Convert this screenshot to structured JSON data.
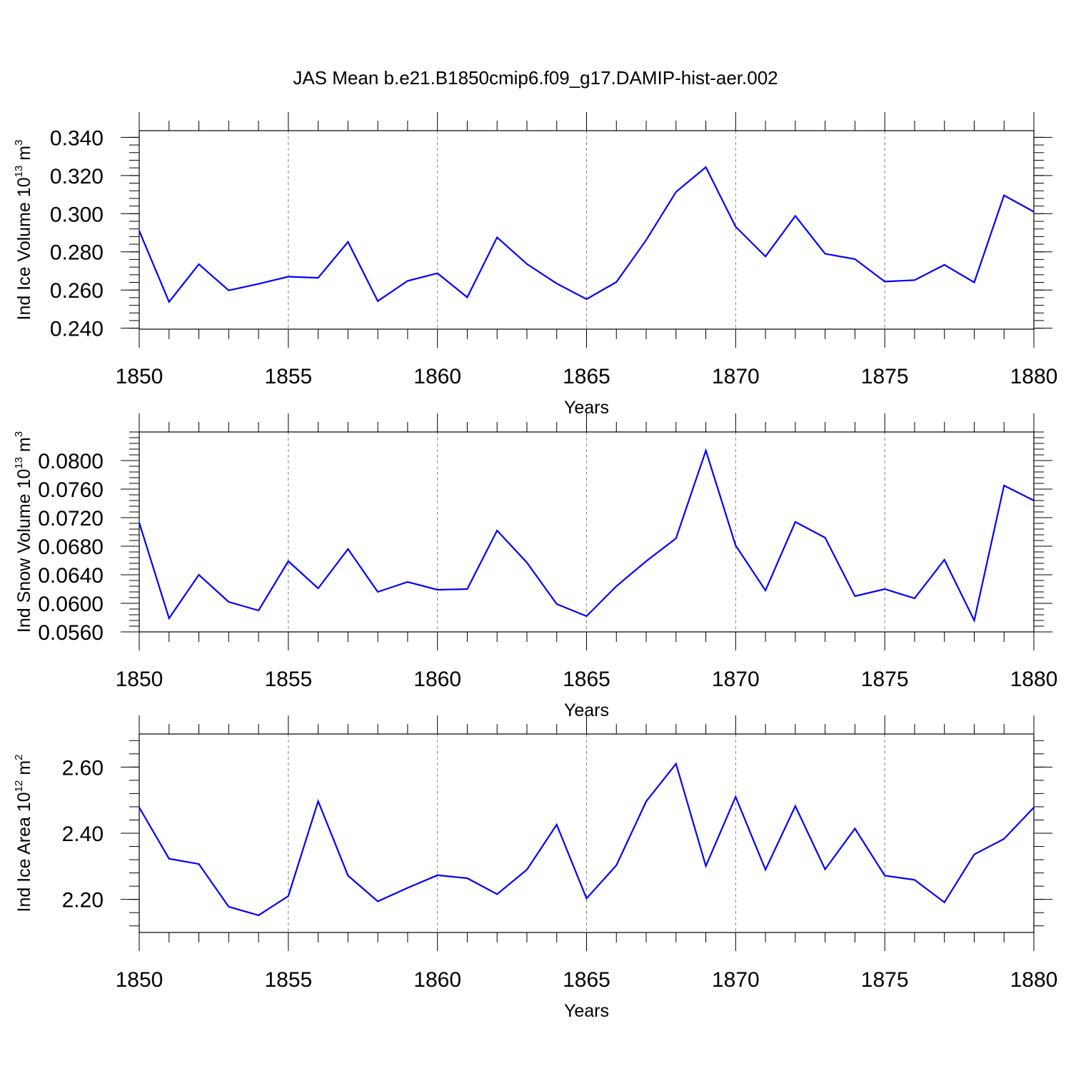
{
  "title": "JAS Mean b.e21.B1850cmip6.f09_g17.DAMIP-hist-aer.002",
  "colors": {
    "series": "#0000ff",
    "axes": "#000000",
    "grid": "#808080",
    "background": "#ffffff"
  },
  "chart_data": [
    {
      "type": "line",
      "title": "",
      "xlabel": "Years",
      "ylabel": {
        "text": "Ind Ice Volume 10",
        "exp": "13",
        "unit": " m",
        "unit_exp": "3"
      },
      "xlim": [
        1850,
        1880
      ],
      "ylim": [
        0.2395,
        0.3435
      ],
      "xticks": [
        1850,
        1855,
        1860,
        1865,
        1870,
        1875,
        1880
      ],
      "xtick_labels": [
        "1850",
        "1855",
        "1860",
        "1865",
        "1870",
        "1875",
        "1880"
      ],
      "yticks": [
        0.24,
        0.26,
        0.28,
        0.3,
        0.32,
        0.34
      ],
      "ytick_labels": [
        "0.240",
        "0.260",
        "0.280",
        "0.300",
        "0.320",
        "0.340"
      ],
      "grid": "vertical dashed at major x ticks",
      "x": [
        1850,
        1851,
        1852,
        1853,
        1854,
        1855,
        1856,
        1857,
        1858,
        1859,
        1860,
        1861,
        1862,
        1863,
        1864,
        1865,
        1866,
        1867,
        1868,
        1869,
        1870,
        1871,
        1872,
        1873,
        1874,
        1875,
        1876,
        1877,
        1878,
        1879,
        1880
      ],
      "series": [
        {
          "values": [
            0.291,
            0.2538,
            0.2735,
            0.2598,
            0.2632,
            0.267,
            0.2664,
            0.2852,
            0.2542,
            0.2648,
            0.2688,
            0.2562,
            0.2876,
            0.2736,
            0.2634,
            0.2552,
            0.2642,
            0.2862,
            0.3114,
            0.3244,
            0.2932,
            0.2776,
            0.2988,
            0.279,
            0.2762,
            0.2644,
            0.2652,
            0.2732,
            0.264,
            0.3096,
            0.301
          ]
        }
      ]
    },
    {
      "type": "line",
      "title": "",
      "xlabel": "Years",
      "ylabel": {
        "text": "Ind Snow Volume 10",
        "exp": "13",
        "unit": " m",
        "unit_exp": "3"
      },
      "xlim": [
        1850,
        1880
      ],
      "ylim": [
        0.056,
        0.084
      ],
      "xticks": [
        1850,
        1855,
        1860,
        1865,
        1870,
        1875,
        1880
      ],
      "xtick_labels": [
        "1850",
        "1855",
        "1860",
        "1865",
        "1870",
        "1875",
        "1880"
      ],
      "yticks": [
        0.056,
        0.06,
        0.064,
        0.068,
        0.072,
        0.076,
        0.08
      ],
      "ytick_labels": [
        "0.0560",
        "0.0600",
        "0.0640",
        "0.0680",
        "0.0720",
        "0.0760",
        "0.0800"
      ],
      "grid": "vertical dashed at major x ticks",
      "x": [
        1850,
        1851,
        1852,
        1853,
        1854,
        1855,
        1856,
        1857,
        1858,
        1859,
        1860,
        1861,
        1862,
        1863,
        1864,
        1865,
        1866,
        1867,
        1868,
        1869,
        1870,
        1871,
        1872,
        1873,
        1874,
        1875,
        1876,
        1877,
        1878,
        1879,
        1880
      ],
      "series": [
        {
          "values": [
            0.0713,
            0.0579,
            0.064,
            0.0602,
            0.059,
            0.0659,
            0.0621,
            0.0676,
            0.0616,
            0.063,
            0.0619,
            0.062,
            0.0702,
            0.0657,
            0.0599,
            0.0582,
            0.0624,
            0.0659,
            0.0691,
            0.0814,
            0.0681,
            0.0618,
            0.0714,
            0.0692,
            0.061,
            0.062,
            0.0607,
            0.0661,
            0.0576,
            0.0765,
            0.0744
          ]
        }
      ]
    },
    {
      "type": "line",
      "title": "",
      "xlabel": "Years",
      "ylabel": {
        "text": "Ind Ice Area 10",
        "exp": "12",
        "unit": " m",
        "unit_exp": "2"
      },
      "xlim": [
        1850,
        1880
      ],
      "ylim": [
        2.1,
        2.7
      ],
      "xticks": [
        1850,
        1855,
        1860,
        1865,
        1870,
        1875,
        1880
      ],
      "xtick_labels": [
        "1850",
        "1855",
        "1860",
        "1865",
        "1870",
        "1875",
        "1880"
      ],
      "yticks": [
        2.2,
        2.4,
        2.6
      ],
      "ytick_labels": [
        "2.20",
        "2.40",
        "2.60"
      ],
      "grid": "vertical dashed at major x ticks",
      "x": [
        1850,
        1851,
        1852,
        1853,
        1854,
        1855,
        1856,
        1857,
        1858,
        1859,
        1860,
        1861,
        1862,
        1863,
        1864,
        1865,
        1866,
        1867,
        1868,
        1869,
        1870,
        1871,
        1872,
        1873,
        1874,
        1875,
        1876,
        1877,
        1878,
        1879,
        1880
      ],
      "series": [
        {
          "values": [
            2.478,
            2.323,
            2.307,
            2.178,
            2.152,
            2.21,
            2.497,
            2.272,
            2.194,
            2.235,
            2.273,
            2.264,
            2.216,
            2.29,
            2.426,
            2.203,
            2.303,
            2.496,
            2.61,
            2.301,
            2.51,
            2.29,
            2.482,
            2.291,
            2.414,
            2.272,
            2.259,
            2.191,
            2.336,
            2.383,
            2.478
          ]
        }
      ]
    }
  ]
}
